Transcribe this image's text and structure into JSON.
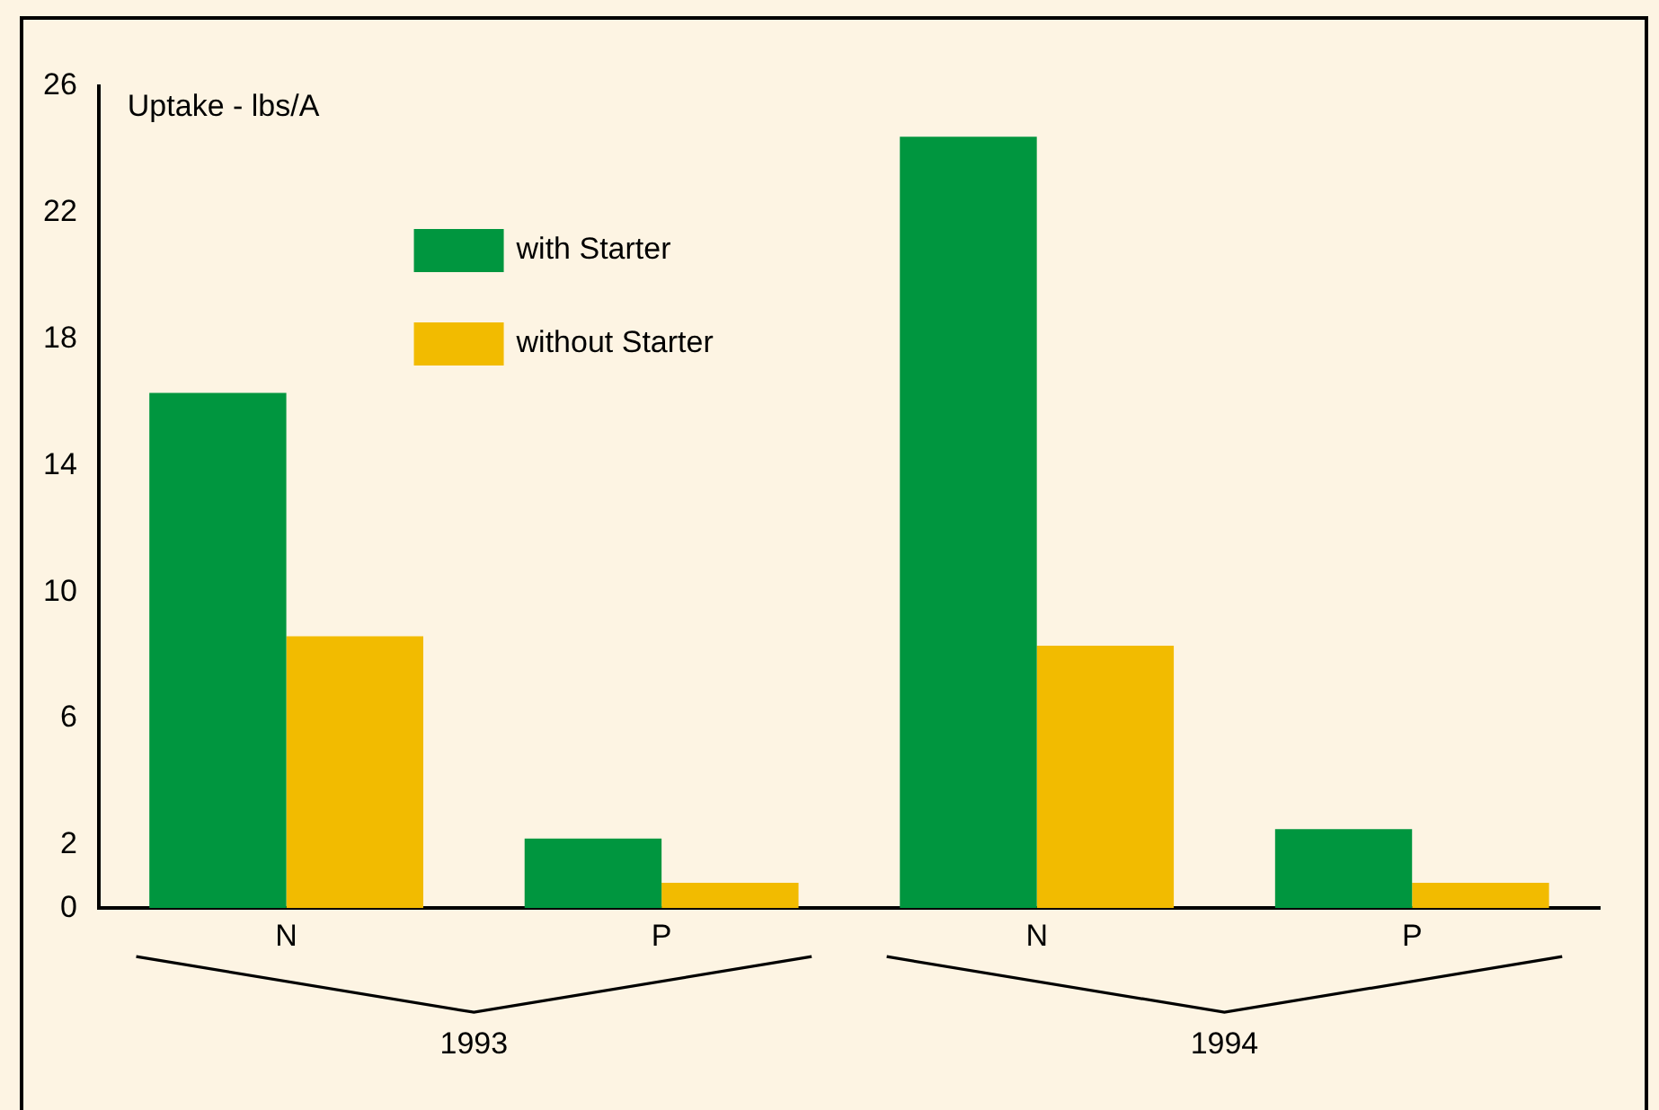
{
  "chart_data": {
    "type": "bar",
    "ylabel": "Uptake - lbs/A",
    "categories": [
      "N",
      "P",
      "N",
      "P"
    ],
    "series": [
      {
        "name": "with Starter",
        "color": "#00963f",
        "values": [
          16.3,
          2.2,
          24.4,
          2.5
        ]
      },
      {
        "name": "without Starter",
        "color": "#f2bb00",
        "values": [
          8.6,
          0.8,
          8.3,
          0.8
        ]
      }
    ],
    "ylim": [
      0,
      26
    ],
    "yticks": [
      0,
      2,
      6,
      10,
      14,
      18,
      22,
      26
    ],
    "grid": false,
    "legend": "top left",
    "annotations": [
      "1993",
      "1994"
    ]
  }
}
